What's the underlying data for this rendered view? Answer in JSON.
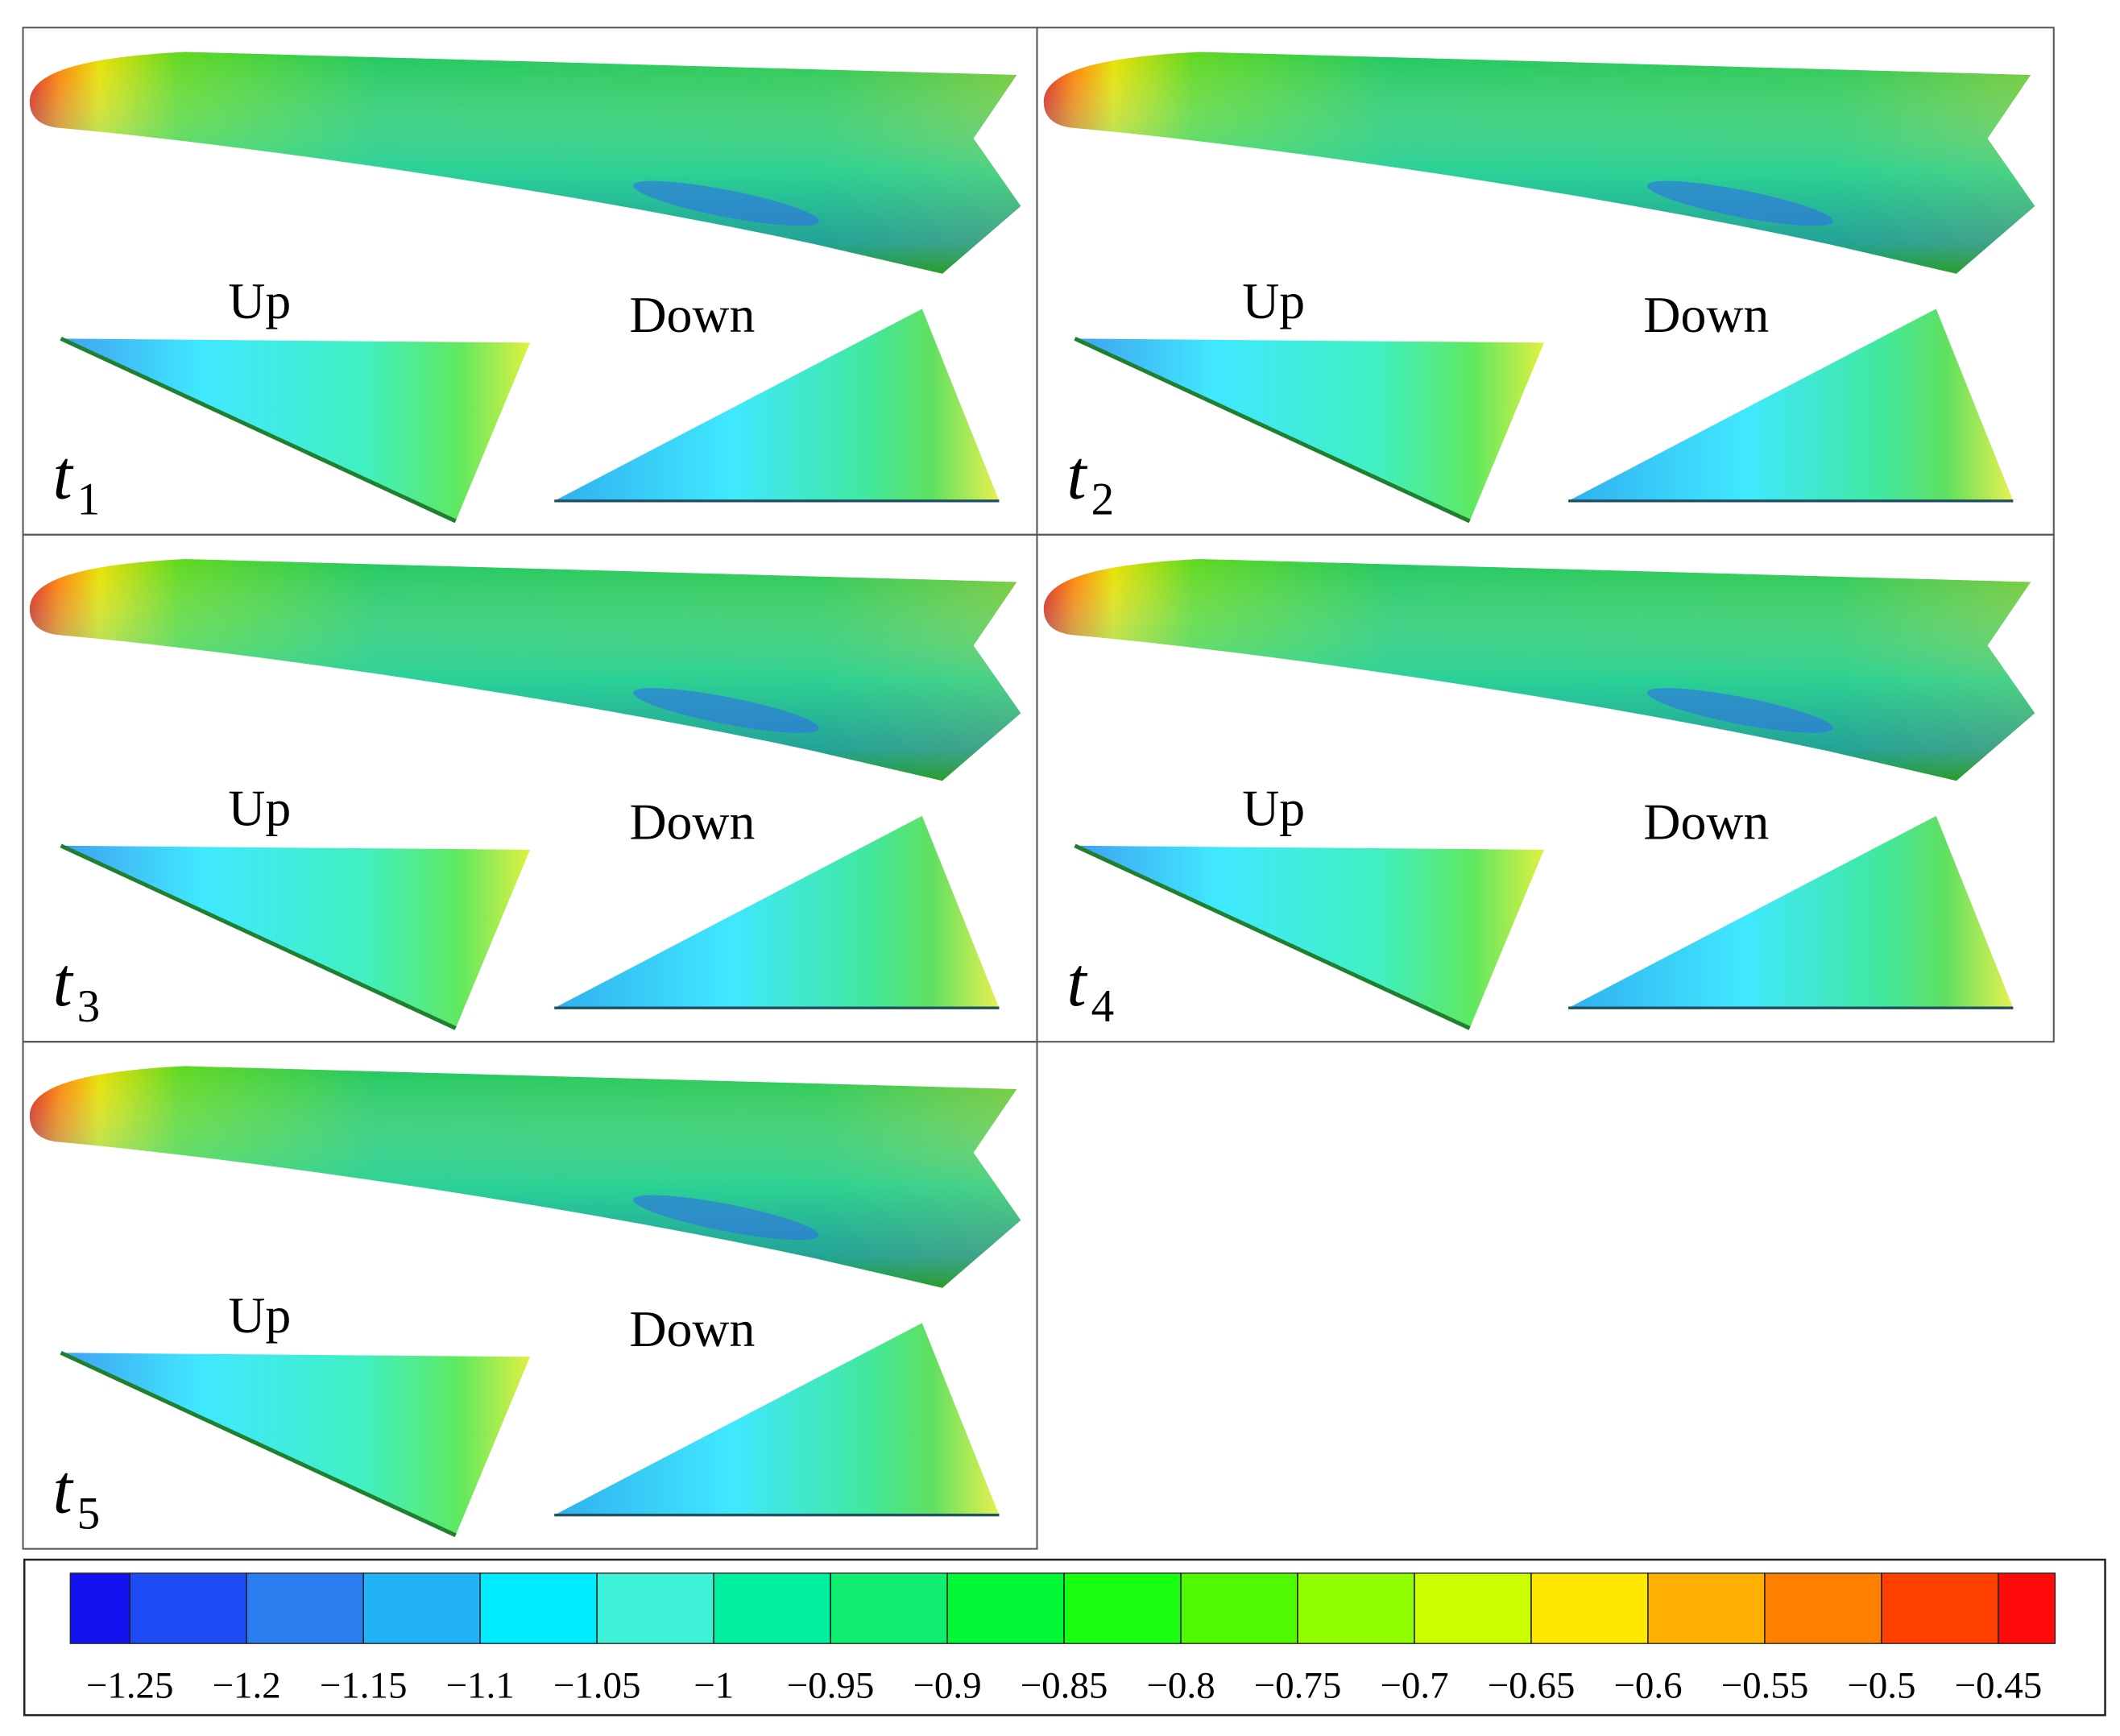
{
  "panels": [
    {
      "time": "t",
      "index": "1",
      "upper_label": "Up",
      "lower_label": "Down"
    },
    {
      "time": "t",
      "index": "2",
      "upper_label": "Up",
      "lower_label": "Down"
    },
    {
      "time": "t",
      "index": "3",
      "upper_label": "Up",
      "lower_label": "Down"
    },
    {
      "time": "t",
      "index": "4",
      "upper_label": "Up",
      "lower_label": "Down"
    },
    {
      "time": "t",
      "index": "5",
      "upper_label": "Up",
      "lower_label": "Down"
    }
  ],
  "colorbar": {
    "colors": [
      "#1212ee",
      "#1d4cf4",
      "#2a7ef0",
      "#22b2f6",
      "#00ecff",
      "#3ef2d8",
      "#00f0a0",
      "#10ee70",
      "#00f834",
      "#18ff12",
      "#52fa00",
      "#92ff00",
      "#cbff00",
      "#ffe800",
      "#ffb000",
      "#ff8000",
      "#ff4000",
      "#ff0a0a"
    ],
    "ticks": [
      {
        "value": -1.25,
        "label": "−1.25"
      },
      {
        "value": -1.2,
        "label": "−1.2"
      },
      {
        "value": -1.15,
        "label": "−1.15"
      },
      {
        "value": -1.1,
        "label": "−1.1"
      },
      {
        "value": -1.05,
        "label": "−1.05"
      },
      {
        "value": -1,
        "label": "−1"
      },
      {
        "value": -0.95,
        "label": "−0.95"
      },
      {
        "value": -0.9,
        "label": "−0.9"
      },
      {
        "value": -0.85,
        "label": "−0.85"
      },
      {
        "value": -0.8,
        "label": "−0.8"
      },
      {
        "value": -0.75,
        "label": "−0.75"
      },
      {
        "value": -0.7,
        "label": "−0.7"
      },
      {
        "value": -0.65,
        "label": "−0.65"
      },
      {
        "value": -0.6,
        "label": "−0.6"
      },
      {
        "value": -0.55,
        "label": "−0.55"
      },
      {
        "value": -0.5,
        "label": "−0.5"
      },
      {
        "value": -0.45,
        "label": "−0.45"
      }
    ]
  }
}
